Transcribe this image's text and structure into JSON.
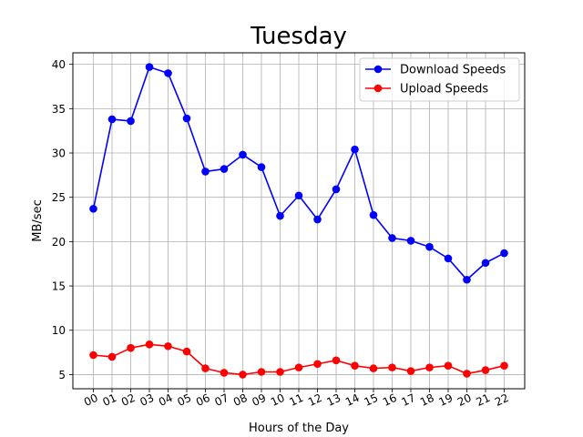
{
  "chart_data": {
    "type": "line",
    "title": "Tuesday",
    "xlabel": "Hours of the Day",
    "ylabel": "MB/sec",
    "categories": [
      "00",
      "01",
      "02",
      "03",
      "04",
      "05",
      "06",
      "07",
      "08",
      "09",
      "10",
      "11",
      "12",
      "13",
      "14",
      "15",
      "16",
      "17",
      "18",
      "19",
      "20",
      "21",
      "22"
    ],
    "ylim": [
      3.4,
      41.3
    ],
    "yticks": [
      5,
      10,
      15,
      20,
      25,
      30,
      35,
      40
    ],
    "grid": true,
    "legend_position": "upper right",
    "series": [
      {
        "name": "Download Speeds",
        "color": "#0000ff",
        "values": [
          23.7,
          33.8,
          33.6,
          39.7,
          39.0,
          33.9,
          27.9,
          28.2,
          29.8,
          28.4,
          22.9,
          25.2,
          22.5,
          25.9,
          30.4,
          23.0,
          20.4,
          20.1,
          19.4,
          18.1,
          15.7,
          17.6,
          18.7
        ]
      },
      {
        "name": "Upload Speeds",
        "color": "#ff0000",
        "values": [
          7.2,
          7.0,
          8.0,
          8.4,
          8.2,
          7.6,
          5.7,
          5.2,
          5.0,
          5.3,
          5.3,
          5.8,
          6.2,
          6.6,
          6.0,
          5.7,
          5.8,
          5.4,
          5.8,
          6.0,
          5.1,
          5.5,
          6.0
        ]
      }
    ]
  }
}
